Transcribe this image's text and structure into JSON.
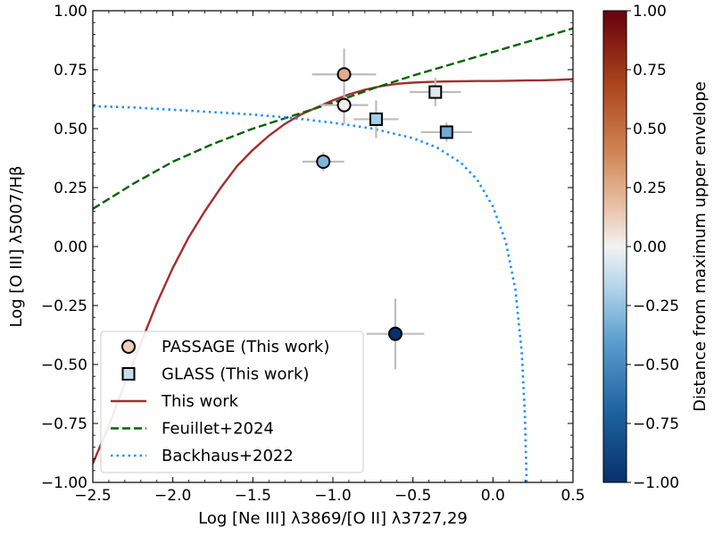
{
  "chart_data": {
    "type": "scatter",
    "xlabel": "Log [Ne III]  λ3869/[O II] λ3727,29",
    "ylabel": "Log [O III] λ5007/Hβ",
    "xlim": [
      -2.5,
      0.5
    ],
    "ylim": [
      -1.0,
      1.0
    ],
    "x_ticks": [
      -2.5,
      -2.0,
      -1.5,
      -1.0,
      -0.5,
      0.0,
      0.5
    ],
    "x_tick_labels": [
      "−2.5",
      "−2.0",
      "−1.5",
      "−1.0",
      "−0.5",
      "0.0",
      "0.5"
    ],
    "y_ticks": [
      -1.0,
      -0.75,
      -0.5,
      -0.25,
      0.0,
      0.25,
      0.5,
      0.75,
      1.0
    ],
    "y_tick_labels": [
      "−1.00",
      "−0.75",
      "−0.50",
      "−0.25",
      "0.00",
      "0.25",
      "0.50",
      "0.75",
      "1.00"
    ],
    "colorbar": {
      "label": "Distance from maximum upper envelope",
      "range": [
        -1.0,
        1.0
      ],
      "ticks": [
        1.0,
        0.75,
        0.5,
        0.25,
        0.0,
        -0.25,
        -0.5,
        -0.75,
        -1.0
      ],
      "tick_labels": [
        "1.00",
        "0.75",
        "0.50",
        "0.25",
        "0.00",
        "−0.25",
        "−0.50",
        "−0.75",
        "−1.00"
      ]
    },
    "series": [
      {
        "name": "PASSAGE (This work)",
        "marker": "circle",
        "points": [
          {
            "x": -0.93,
            "y": 0.73,
            "xerr": 0.2,
            "yerr": 0.11,
            "c": 0.25
          },
          {
            "x": -0.93,
            "y": 0.6,
            "xerr": 0.15,
            "yerr": 0.08,
            "c": 0.02
          },
          {
            "x": -1.06,
            "y": 0.36,
            "xerr": 0.13,
            "yerr": 0.04,
            "c": -0.3
          },
          {
            "x": -0.61,
            "y": -0.37,
            "xerr": 0.18,
            "yerr": 0.15,
            "c": -1.0
          }
        ]
      },
      {
        "name": "GLASS (This work)",
        "marker": "square",
        "points": [
          {
            "x": -0.73,
            "y": 0.54,
            "xerr": 0.14,
            "yerr": 0.08,
            "c": -0.2
          },
          {
            "x": -0.36,
            "y": 0.655,
            "xerr": 0.16,
            "yerr": 0.06,
            "c": -0.05
          },
          {
            "x": -0.29,
            "y": 0.485,
            "xerr": 0.16,
            "yerr": 0.04,
            "c": -0.35
          }
        ]
      }
    ],
    "curves": [
      {
        "name": "This work",
        "style": "solid",
        "color": "#a32e2e",
        "x": [
          -2.5,
          -2.4,
          -2.3,
          -2.2,
          -2.1,
          -2.0,
          -1.9,
          -1.8,
          -1.7,
          -1.6,
          -1.5,
          -1.4,
          -1.3,
          -1.2,
          -1.1,
          -1.0,
          -0.9,
          -0.8,
          -0.7,
          -0.6,
          -0.5,
          -0.4,
          -0.3,
          -0.2,
          -0.1,
          0.0,
          0.1,
          0.2,
          0.3,
          0.4,
          0.5
        ],
        "y": [
          -0.92,
          -0.76,
          -0.58,
          -0.41,
          -0.24,
          -0.09,
          0.04,
          0.15,
          0.25,
          0.34,
          0.41,
          0.47,
          0.52,
          0.56,
          0.59,
          0.62,
          0.645,
          0.665,
          0.68,
          0.69,
          0.695,
          0.698,
          0.7,
          0.701,
          0.702,
          0.702,
          0.703,
          0.704,
          0.705,
          0.707,
          0.71
        ]
      },
      {
        "name": "Feuillet+2024",
        "style": "dashed",
        "color": "#006400",
        "x": [
          -2.5,
          -2.25,
          -2.0,
          -1.75,
          -1.5,
          -1.25,
          -1.0,
          -0.75,
          -0.5,
          -0.25,
          0.0,
          0.25,
          0.5
        ],
        "y": [
          0.16,
          0.265,
          0.36,
          0.435,
          0.5,
          0.555,
          0.61,
          0.67,
          0.725,
          0.775,
          0.825,
          0.875,
          0.925
        ]
      },
      {
        "name": "Backhaus+2022",
        "style": "dotted",
        "color": "#1e90ff",
        "x": [
          -2.5,
          -2.25,
          -2.0,
          -1.75,
          -1.5,
          -1.25,
          -1.0,
          -0.75,
          -0.5,
          -0.35,
          -0.2,
          -0.1,
          0.0,
          0.08,
          0.14,
          0.18,
          0.2,
          0.21
        ],
        "y": [
          0.595,
          0.59,
          0.58,
          0.57,
          0.56,
          0.545,
          0.525,
          0.5,
          0.46,
          0.42,
          0.355,
          0.285,
          0.17,
          0.02,
          -0.18,
          -0.45,
          -0.72,
          -1.0
        ]
      }
    ],
    "legend": {
      "position": "lower-left",
      "entries": [
        {
          "label": "PASSAGE (This work)",
          "kind": "circle"
        },
        {
          "label": "GLASS (This work)",
          "kind": "square"
        },
        {
          "label": "This work",
          "kind": "solid",
          "color": "#a32e2e"
        },
        {
          "label": "Feuillet+2024",
          "kind": "dashed",
          "color": "#006400"
        },
        {
          "label": "Backhaus+2022",
          "kind": "dotted",
          "color": "#1e90ff"
        }
      ]
    }
  }
}
